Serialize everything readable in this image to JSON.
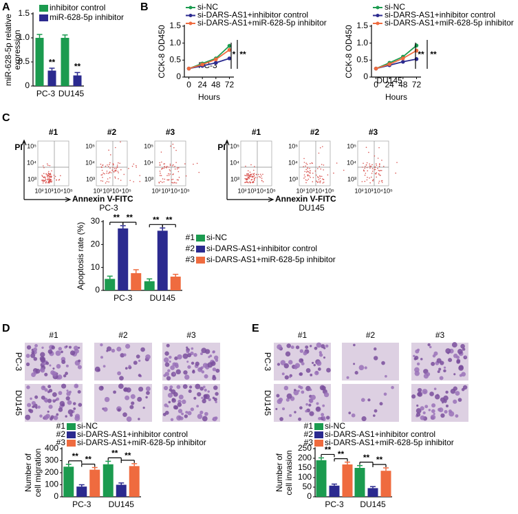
{
  "panel_labels": [
    "A",
    "B",
    "C",
    "D",
    "E"
  ],
  "chart_data": [
    {
      "type": "bar",
      "ylabel": [
        "miR-628-5p relative",
        "expression"
      ],
      "categories": [
        "PC-3",
        "DU145"
      ],
      "series": [
        {
          "name": "inhibitor control",
          "color": "#1b9b4f",
          "values": [
            1.0,
            1.0
          ],
          "errors": [
            0.07,
            0.06
          ]
        },
        {
          "name": "miR-628-5p inhibitor",
          "color": "#2b2a8f",
          "values": [
            0.32,
            0.22
          ],
          "errors": [
            0.05,
            0.06
          ]
        }
      ],
      "ylim": [
        0,
        1.5
      ],
      "yticks": [
        0,
        0.5,
        {
          "value": 1,
          "label": "1.0"
        },
        1.5
      ],
      "annotations": [
        "**",
        "**"
      ]
    },
    {
      "type": "line",
      "label": "PC-3",
      "xlabel": "Hours",
      "ylabel": [
        "CCK-8 OD450"
      ],
      "x": [
        0,
        24,
        48,
        72
      ],
      "series": [
        {
          "name": "si-NC",
          "color": "#1b9b4f",
          "values": [
            0.25,
            0.4,
            0.55,
            0.92
          ],
          "errors": [
            0.04,
            0.04,
            0.05,
            0.06
          ]
        },
        {
          "name": "si-DARS-AS1+inhibitor control",
          "color": "#2b2a8f",
          "values": [
            0.25,
            0.33,
            0.42,
            0.55
          ],
          "errors": [
            0.04,
            0.04,
            0.04,
            0.05
          ]
        },
        {
          "name": "si-DARS-AS1+miR-628-5p inhibitor",
          "color": "#ef6b3f",
          "values": [
            0.25,
            0.37,
            0.52,
            0.8
          ],
          "errors": [
            0.04,
            0.04,
            0.05,
            0.06
          ]
        }
      ],
      "xlim": [
        -8,
        80
      ],
      "xticks": [
        0,
        24,
        48,
        72
      ],
      "ylim": [
        0,
        1.5
      ],
      "yticks": [
        0,
        0.5,
        {
          "value": 1,
          "label": "1.0"
        },
        1.5
      ],
      "annotations": [
        "*",
        "**"
      ]
    },
    {
      "type": "line",
      "label": "DU145",
      "xlabel": "Hours",
      "ylabel": [
        "CCK-8 OD450"
      ],
      "x": [
        0,
        24,
        48,
        72
      ],
      "series": [
        {
          "name": "si-NC",
          "color": "#1b9b4f",
          "values": [
            0.25,
            0.42,
            0.6,
            0.93
          ],
          "errors": [
            0.04,
            0.04,
            0.05,
            0.06
          ]
        },
        {
          "name": "si-DARS-AS1+inhibitor control",
          "color": "#2b2a8f",
          "values": [
            0.25,
            0.35,
            0.45,
            0.53
          ],
          "errors": [
            0.04,
            0.04,
            0.04,
            0.05
          ]
        },
        {
          "name": "si-DARS-AS1+miR-628-5p inhibitor",
          "color": "#ef6b3f",
          "values": [
            0.25,
            0.38,
            0.55,
            0.78
          ],
          "errors": [
            0.04,
            0.04,
            0.05,
            0.06
          ]
        }
      ],
      "xlim": [
        -8,
        80
      ],
      "xticks": [
        0,
        24,
        48,
        72
      ],
      "ylim": [
        0,
        1.5
      ],
      "yticks": [
        0,
        0.5,
        {
          "value": 1,
          "label": "1.0"
        },
        1.5
      ],
      "annotations": [
        "**",
        "**"
      ]
    },
    {
      "type": "bar",
      "ylabel": [
        "Apoptosis rate (%)"
      ],
      "categories": [
        "PC-3",
        "DU145"
      ],
      "legend_prefixes": [
        "#1",
        "#2",
        "#3"
      ],
      "series": [
        {
          "name": "si-NC",
          "color": "#1b9b4f",
          "values": [
            5,
            4
          ],
          "errors": [
            1.2,
            1
          ]
        },
        {
          "name": "si-DARS-AS1+inhibitor control",
          "color": "#2b2a8f",
          "values": [
            27,
            26
          ],
          "errors": [
            1.2,
            1.2
          ]
        },
        {
          "name": "si-DARS-AS1+miR-628-5p inhibitor",
          "color": "#ef6b3f",
          "values": [
            7.5,
            6
          ],
          "errors": [
            1.5,
            1
          ]
        }
      ],
      "ylim": [
        0,
        30
      ],
      "yticks": [
        0,
        10,
        20,
        30
      ],
      "annotations": [
        "**",
        "**",
        "**",
        "**"
      ]
    },
    {
      "type": "bar",
      "ylabel": [
        "Number of",
        "cell migration"
      ],
      "categories": [
        "PC-3",
        "DU145"
      ],
      "legend_prefixes": [
        "#1",
        "#2",
        "#3"
      ],
      "series": [
        {
          "name": "si-NC",
          "color": "#1b9b4f",
          "values": [
            250,
            270
          ],
          "errors": [
            20,
            25
          ]
        },
        {
          "name": "si-DARS-AS1+inhibitor control",
          "color": "#2b2a8f",
          "values": [
            85,
            100
          ],
          "errors": [
            15,
            15
          ]
        },
        {
          "name": "si-DARS-AS1+miR-628-5p inhibitor",
          "color": "#ef6b3f",
          "values": [
            225,
            255
          ],
          "errors": [
            18,
            20
          ]
        }
      ],
      "ylim": [
        0,
        400
      ],
      "yticks": [
        0,
        100,
        200,
        300,
        400
      ],
      "annotations": [
        "**",
        "**",
        "**",
        "**"
      ]
    },
    {
      "type": "bar",
      "ylabel": [
        "Number of",
        "cell invasion"
      ],
      "categories": [
        "PC-3",
        "DU145"
      ],
      "legend_prefixes": [
        "#1",
        "#2",
        "#3"
      ],
      "series": [
        {
          "name": "si-NC",
          "color": "#1b9b4f",
          "values": [
            190,
            150
          ],
          "errors": [
            12,
            12
          ]
        },
        {
          "name": "si-DARS-AS1+inhibitor control",
          "color": "#2b2a8f",
          "values": [
            58,
            45
          ],
          "errors": [
            8,
            8
          ]
        },
        {
          "name": "si-DARS-AS1+miR-628-5p inhibitor",
          "color": "#ef6b3f",
          "values": [
            168,
            135
          ],
          "errors": [
            12,
            15
          ]
        }
      ],
      "ylim": [
        0,
        250
      ],
      "yticks": [
        0,
        50,
        100,
        150,
        200,
        250
      ],
      "annotations": [
        "**",
        "**",
        "**",
        "**"
      ]
    }
  ],
  "flow": {
    "ylabel": "PI",
    "xlabel": "Annexin V-FITC",
    "yticks": [
      "10⁵",
      "10⁴",
      "10³"
    ],
    "xticks": [
      "10²",
      "10³",
      "10⁴",
      "10⁵"
    ],
    "groups": [
      {
        "label": "PC-3",
        "titles": [
          "#1",
          "#2",
          "#3"
        ]
      },
      {
        "label": "DU145",
        "titles": [
          "#1",
          "#2",
          "#3"
        ]
      }
    ]
  },
  "images": [
    {
      "columns": [
        "#1",
        "#2",
        "#3"
      ],
      "rows": [
        "PC-3",
        "DU145"
      ]
    },
    {
      "columns": [
        "#1",
        "#2",
        "#3"
      ],
      "rows": [
        "PC-3",
        "DU145"
      ]
    }
  ]
}
